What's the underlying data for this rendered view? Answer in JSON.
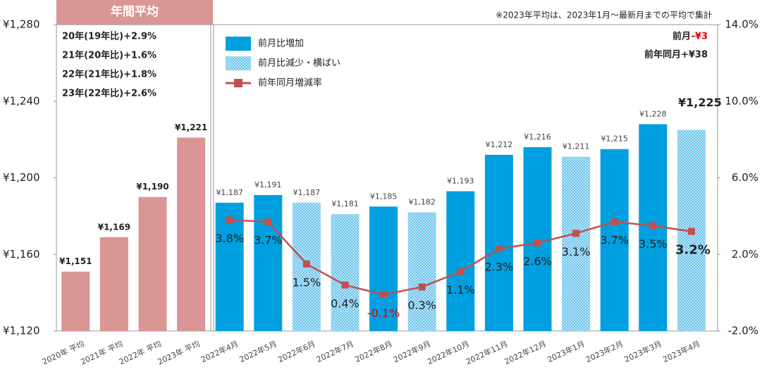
{
  "chart_data": {
    "type": "bar",
    "categories": [
      "2020年 平均",
      "2021年 平均",
      "2022年 平均",
      "2023年 平均",
      "2022年4月",
      "2022年5月",
      "2022年6月",
      "2022年7月",
      "2022年8月",
      "2022年9月",
      "2022年10月",
      "2022年11月",
      "2022年12月",
      "2023年1月",
      "2023年2月",
      "2023年3月",
      "2023年4月"
    ],
    "series": [
      {
        "color": "#d99694",
        "values": [
          1151,
          1169,
          1190,
          1221,
          null,
          null,
          null,
          null,
          null,
          null,
          null,
          null,
          null,
          null,
          null,
          null,
          null
        ],
        "value_labels": [
          "¥1,151",
          "¥1,169",
          "¥1,190",
          "¥1,221",
          null,
          null,
          null,
          null,
          null,
          null,
          null,
          null,
          null,
          null,
          null,
          null,
          null
        ]
      },
      {
        "name": "前月比増加",
        "color": "#00a0e0",
        "values": [
          null,
          null,
          null,
          null,
          1187,
          1191,
          null,
          null,
          1185,
          null,
          1193,
          1212,
          1216,
          null,
          1215,
          1228,
          null
        ],
        "value_labels": [
          null,
          null,
          null,
          null,
          "¥1,187",
          "¥1,191",
          null,
          null,
          "¥1,185",
          null,
          "¥1,193",
          "¥1,212",
          "¥1,216",
          null,
          "¥1,215",
          "¥1,228",
          null
        ]
      },
      {
        "name": "前月比減少・横ばい",
        "color": "#2aa8e6",
        "pattern": "dots",
        "values": [
          null,
          null,
          null,
          null,
          null,
          null,
          1187,
          1181,
          null,
          1182,
          null,
          null,
          null,
          1211,
          null,
          null,
          1225
        ],
        "value_labels": [
          null,
          null,
          null,
          null,
          null,
          null,
          "¥1,187",
          "¥1,181",
          null,
          "¥1,182",
          null,
          null,
          null,
          "¥1,211",
          null,
          null,
          "¥1,225"
        ]
      },
      {
        "name": "前年同月増減率",
        "type": "line",
        "axis": "y2",
        "color": "#c0504d",
        "values": [
          null,
          null,
          null,
          null,
          3.8,
          3.7,
          1.5,
          0.4,
          -0.1,
          0.3,
          1.1,
          2.3,
          2.6,
          3.1,
          3.7,
          3.5,
          3.2
        ],
        "value_labels": [
          null,
          null,
          null,
          null,
          "3.8%",
          "3.7%",
          "1.5%",
          "0.4%",
          "-0.1%",
          "0.3%",
          "1.1%",
          "2.3%",
          "2.6%",
          "3.1%",
          "3.7%",
          "3.5%",
          "3.2%"
        ]
      }
    ],
    "ylim": [
      1120,
      1280
    ],
    "yticks": [
      {
        "value": 1120,
        "label": "¥1,120"
      },
      {
        "value": 1160,
        "label": "¥1,160"
      },
      {
        "value": 1200,
        "label": "¥1,200"
      },
      {
        "value": 1240,
        "label": "¥1,240"
      },
      {
        "value": 1280,
        "label": "¥1,280"
      }
    ],
    "y2lim": [
      -2,
      14
    ],
    "y2ticks": [
      {
        "value": -2,
        "label": "-2.0%"
      },
      {
        "value": 2,
        "label": "2.0%"
      },
      {
        "value": 6,
        "label": "6.0%"
      },
      {
        "value": 10,
        "label": "10.0%"
      },
      {
        "value": 14,
        "label": "14.0%"
      }
    ],
    "annotations": {
      "annual_header": "年間平均",
      "annual_notes": [
        "20年(19年比)+2.9%",
        "21年(20年比)+1.6%",
        "22年(21年比)+1.8%",
        "23年(22年比)+2.6%"
      ],
      "note": "※2023年平均は、2023年1月～最新月までの平均で集計",
      "prev_month_label": "前月",
      "prev_month_value": "-¥3",
      "yoy_label": "前年同月+¥38"
    }
  }
}
